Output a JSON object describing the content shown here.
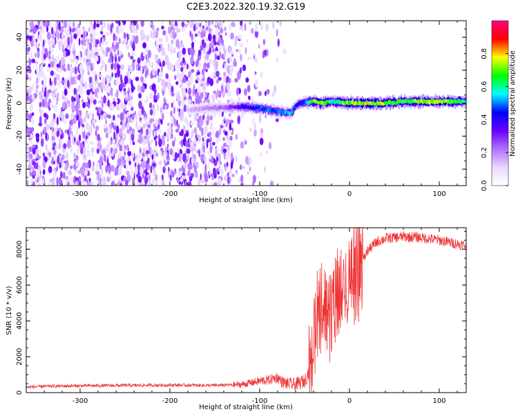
{
  "title": "C2E3.2022.320.19.32.G19",
  "chart_data": [
    {
      "type": "heatmap",
      "xlabel": "Height of straight line (km)",
      "ylabel": "Frequency (Hz)",
      "xlim": [
        -360,
        130
      ],
      "ylim": [
        -50,
        50
      ],
      "xticks": [
        "-300",
        "-200",
        "-100",
        "0",
        "100"
      ],
      "xtick_values": [
        -300,
        -200,
        -100,
        0,
        100
      ],
      "yticks": [
        "-40",
        "-20",
        "0",
        "20",
        "40"
      ],
      "ytick_values": [
        -40,
        -20,
        0,
        20,
        40
      ],
      "colorbar": {
        "label": "Normalized spectral amplitude",
        "range": [
          0.0,
          1.0
        ],
        "ticks": [
          "0.0",
          "0.2",
          "0.4",
          "0.6",
          "0.8"
        ],
        "tick_values": [
          0.0,
          0.2,
          0.4,
          0.6,
          0.8
        ],
        "colormap": [
          "#ffffff",
          "#e8d8ff",
          "#b070ff",
          "#6a00ff",
          "#0000ff",
          "#00ffff",
          "#00ff00",
          "#ffff00",
          "#ff0000",
          "#ff0080"
        ]
      },
      "signal_track": {
        "x": [
          -180,
          -160,
          -140,
          -120,
          -100,
          -80,
          -65,
          -60,
          -55,
          -40,
          -30,
          -20,
          0,
          20,
          40,
          60,
          80,
          100,
          120,
          130
        ],
        "freq": [
          -4,
          -3,
          -3,
          -2,
          -3,
          -5,
          -6,
          -2,
          0,
          1,
          0,
          1,
          0,
          0,
          0,
          1,
          1,
          1,
          1,
          1
        ],
        "amplitude": [
          0.15,
          0.2,
          0.25,
          0.4,
          0.5,
          0.5,
          0.6,
          0.45,
          0.4,
          0.7,
          0.85,
          0.6,
          0.75,
          0.8,
          0.75,
          0.7,
          0.75,
          0.8,
          0.7,
          0.6
        ]
      }
    },
    {
      "type": "line",
      "xlabel": "Height of straight line (km)",
      "ylabel": "SNR (10 * v/v)",
      "xlim": [
        -360,
        130
      ],
      "ylim": [
        0,
        9200
      ],
      "xticks": [
        "-300",
        "-200",
        "-100",
        "0",
        "100"
      ],
      "xtick_values": [
        -300,
        -200,
        -100,
        0,
        100
      ],
      "yticks": [
        "0",
        "2000",
        "4000",
        "6000",
        "8000"
      ],
      "ytick_values": [
        0,
        2000,
        4000,
        6000,
        8000
      ],
      "series": [
        {
          "color": "#ee3333",
          "x": [
            -360,
            -340,
            -300,
            -250,
            -200,
            -150,
            -120,
            -110,
            -100,
            -90,
            -80,
            -75,
            -70,
            -60,
            -50,
            -45,
            -40,
            -35,
            -30,
            -25,
            -20,
            -15,
            -10,
            -5,
            0,
            10,
            20,
            30,
            40,
            60,
            80,
            100,
            120,
            130
          ],
          "y": [
            300,
            350,
            380,
            400,
            420,
            400,
            450,
            550,
            650,
            700,
            850,
            600,
            500,
            450,
            650,
            1200,
            2500,
            4000,
            5000,
            4500,
            4200,
            5200,
            5500,
            6000,
            6300,
            6800,
            7900,
            8400,
            8600,
            8700,
            8650,
            8500,
            8300,
            8200
          ]
        }
      ]
    }
  ]
}
